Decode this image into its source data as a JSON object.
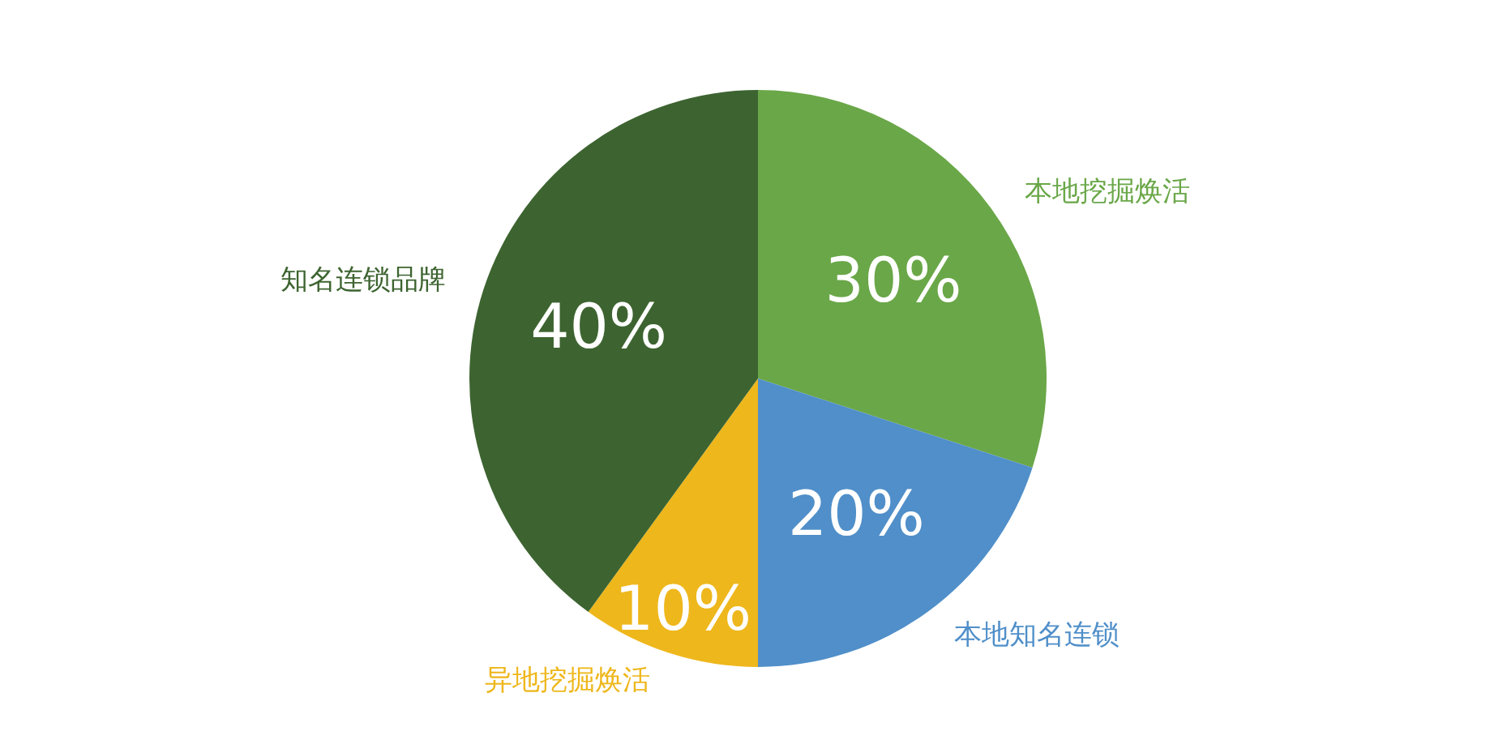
{
  "chart_data": {
    "type": "pie",
    "categories": [
      "本地挖掘焕活",
      "本地知名连锁",
      "异地挖掘焕活",
      "知名连锁品牌"
    ],
    "values": [
      30,
      20,
      10,
      40
    ],
    "colors": [
      "#6aa748",
      "#508fc9",
      "#eeb71c",
      "#3d6430"
    ],
    "value_labels": [
      "30%",
      "20%",
      "10%",
      "40%"
    ]
  }
}
